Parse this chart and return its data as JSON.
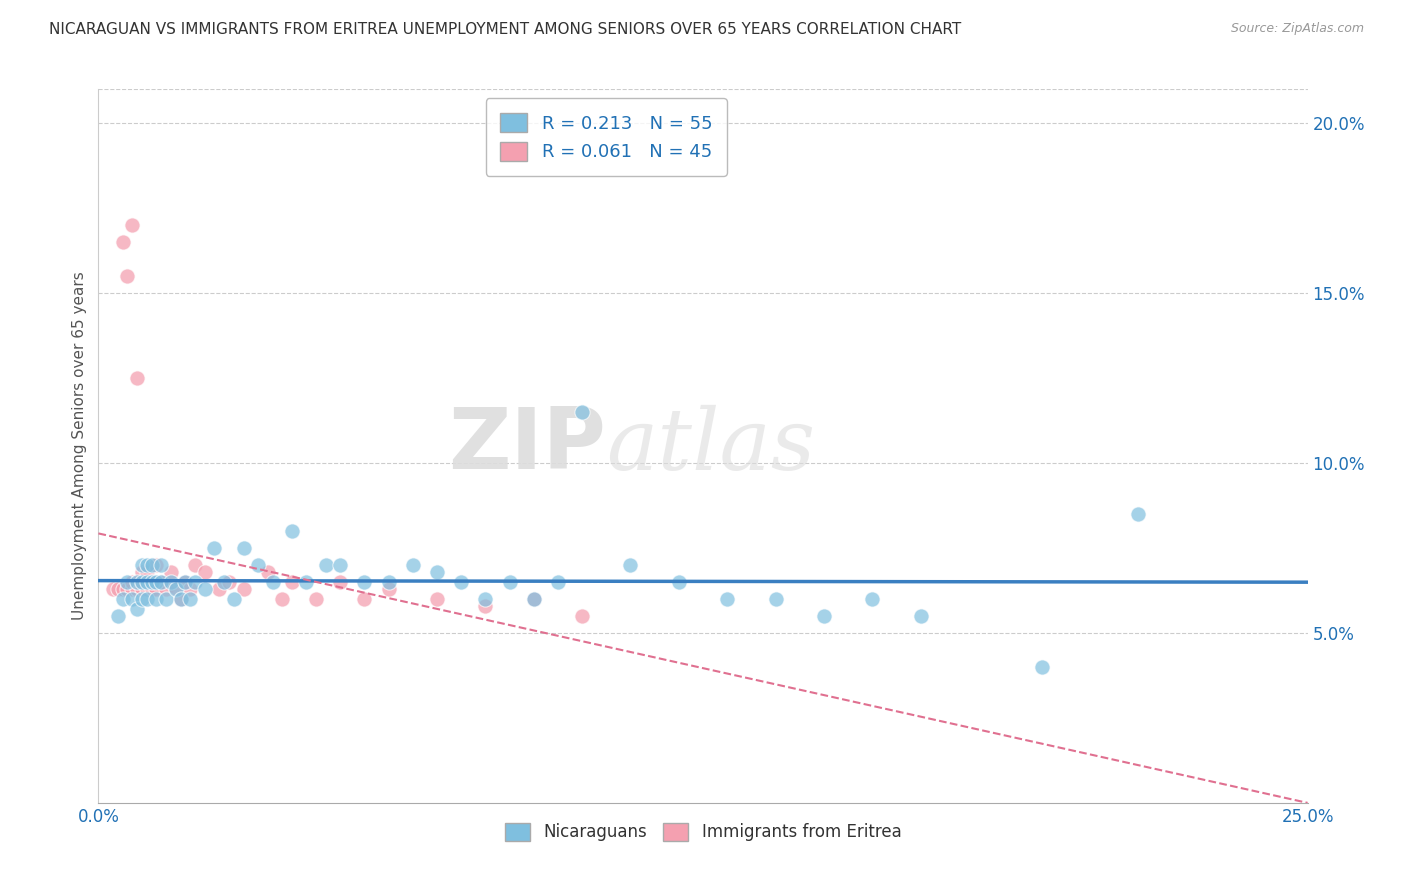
{
  "title": "NICARAGUAN VS IMMIGRANTS FROM ERITREA UNEMPLOYMENT AMONG SENIORS OVER 65 YEARS CORRELATION CHART",
  "source": "Source: ZipAtlas.com",
  "ylabel": "Unemployment Among Seniors over 65 years",
  "xlim": [
    0.0,
    0.25
  ],
  "ylim": [
    0.0,
    0.21
  ],
  "yticks_right": [
    0.05,
    0.1,
    0.15,
    0.2
  ],
  "ytick_labels_right": [
    "5.0%",
    "10.0%",
    "15.0%",
    "20.0%"
  ],
  "nicaraguan_R": 0.213,
  "nicaraguan_N": 55,
  "eritrea_R": 0.061,
  "eritrea_N": 45,
  "blue_color": "#7fbfdf",
  "pink_color": "#f4a0b0",
  "blue_line_color": "#3a7fc1",
  "pink_line_color": "#e07090",
  "watermark_zip": "ZIP",
  "watermark_atlas": "atlas",
  "nicaraguan_x": [
    0.004,
    0.005,
    0.006,
    0.007,
    0.008,
    0.008,
    0.009,
    0.009,
    0.009,
    0.01,
    0.01,
    0.01,
    0.011,
    0.011,
    0.012,
    0.012,
    0.013,
    0.013,
    0.014,
    0.015,
    0.016,
    0.017,
    0.018,
    0.019,
    0.02,
    0.022,
    0.024,
    0.026,
    0.028,
    0.03,
    0.033,
    0.036,
    0.04,
    0.043,
    0.047,
    0.05,
    0.055,
    0.06,
    0.065,
    0.07,
    0.075,
    0.08,
    0.085,
    0.09,
    0.095,
    0.1,
    0.11,
    0.12,
    0.13,
    0.14,
    0.15,
    0.16,
    0.17,
    0.195,
    0.215
  ],
  "nicaraguan_y": [
    0.055,
    0.06,
    0.065,
    0.06,
    0.057,
    0.065,
    0.06,
    0.065,
    0.07,
    0.06,
    0.065,
    0.07,
    0.065,
    0.07,
    0.06,
    0.065,
    0.065,
    0.07,
    0.06,
    0.065,
    0.063,
    0.06,
    0.065,
    0.06,
    0.065,
    0.063,
    0.075,
    0.065,
    0.06,
    0.075,
    0.07,
    0.065,
    0.08,
    0.065,
    0.07,
    0.07,
    0.065,
    0.065,
    0.07,
    0.068,
    0.065,
    0.06,
    0.065,
    0.06,
    0.065,
    0.115,
    0.07,
    0.065,
    0.06,
    0.06,
    0.055,
    0.06,
    0.055,
    0.04,
    0.085
  ],
  "eritrea_x": [
    0.003,
    0.004,
    0.005,
    0.005,
    0.006,
    0.006,
    0.007,
    0.007,
    0.007,
    0.008,
    0.008,
    0.008,
    0.009,
    0.009,
    0.009,
    0.01,
    0.01,
    0.01,
    0.011,
    0.011,
    0.012,
    0.012,
    0.013,
    0.014,
    0.015,
    0.016,
    0.017,
    0.018,
    0.019,
    0.02,
    0.022,
    0.025,
    0.027,
    0.03,
    0.035,
    0.038,
    0.04,
    0.045,
    0.05,
    0.055,
    0.06,
    0.07,
    0.08,
    0.09,
    0.1
  ],
  "eritrea_y": [
    0.063,
    0.063,
    0.063,
    0.165,
    0.063,
    0.155,
    0.063,
    0.065,
    0.17,
    0.063,
    0.065,
    0.125,
    0.063,
    0.065,
    0.068,
    0.063,
    0.065,
    0.068,
    0.063,
    0.065,
    0.07,
    0.063,
    0.065,
    0.063,
    0.068,
    0.063,
    0.06,
    0.065,
    0.063,
    0.07,
    0.068,
    0.063,
    0.065,
    0.063,
    0.068,
    0.06,
    0.065,
    0.06,
    0.065,
    0.06,
    0.063,
    0.06,
    0.058,
    0.06,
    0.055
  ]
}
